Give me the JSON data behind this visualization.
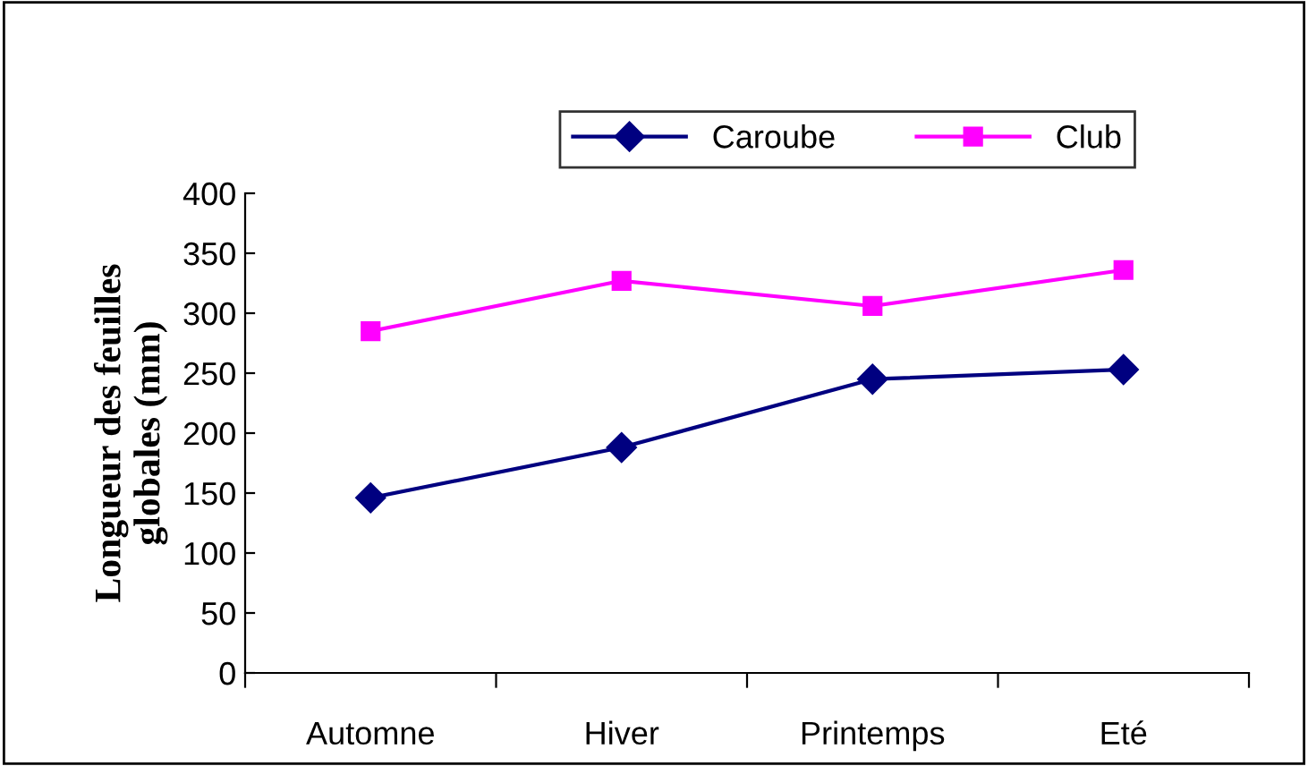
{
  "chart_data": {
    "type": "line",
    "ylabel": "Longueur des feuilles\nglobales (mm)",
    "categories": [
      "Automne",
      "Hiver",
      "Printemps",
      "Eté"
    ],
    "series": [
      {
        "name": "Caroube",
        "color": "#000080",
        "values": [
          146,
          188,
          245,
          253
        ],
        "marker": "diamond"
      },
      {
        "name": "Club",
        "color": "#ff00ff",
        "values": [
          285,
          327,
          306,
          336
        ],
        "marker": "square"
      }
    ],
    "ylim": [
      0,
      400
    ],
    "yticks": [
      0,
      50,
      100,
      150,
      200,
      250,
      300,
      350,
      400
    ],
    "grid": false,
    "legend": "top",
    "line_style": "solid"
  }
}
